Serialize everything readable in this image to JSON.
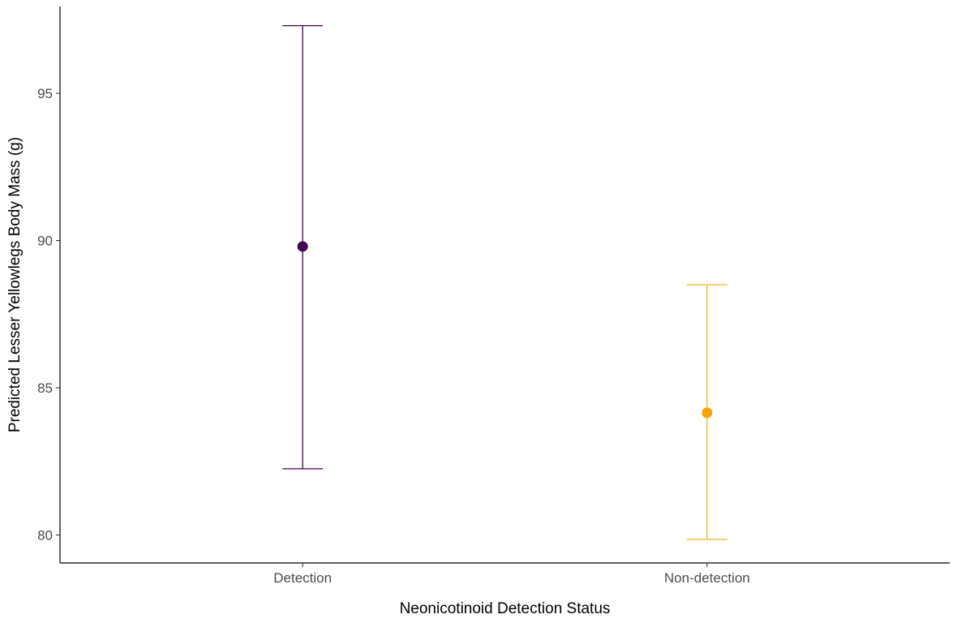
{
  "chart_data": {
    "type": "scatter",
    "subtype": "point-with-error-bars",
    "title": "",
    "xlabel": "Neonicotinoid Detection Status",
    "ylabel": "Predicted Lesser Yellowlegs Body Mass (g)",
    "categories": [
      "Detection",
      "Non-detection"
    ],
    "points": [
      {
        "category": "Detection",
        "estimate": 89.8,
        "lower": 82.25,
        "upper": 97.3,
        "color": "#440154"
      },
      {
        "category": "Non-detection",
        "estimate": 84.15,
        "lower": 79.85,
        "upper": 88.5,
        "color": "#F5A30A"
      }
    ],
    "y_ticks": [
      80,
      85,
      90,
      95
    ],
    "y_tick_labels": [
      "80",
      "85",
      "90",
      "95"
    ],
    "ylim": [
      79.05,
      97.95
    ],
    "grid": false,
    "legend": "none",
    "colors": {
      "Detection": "#440154",
      "Non-detection": "#F5A30A",
      "Non-detection_errorbar": "#E6B31E",
      "axis": "#000000",
      "tick_label": "#4d4d4d"
    }
  }
}
